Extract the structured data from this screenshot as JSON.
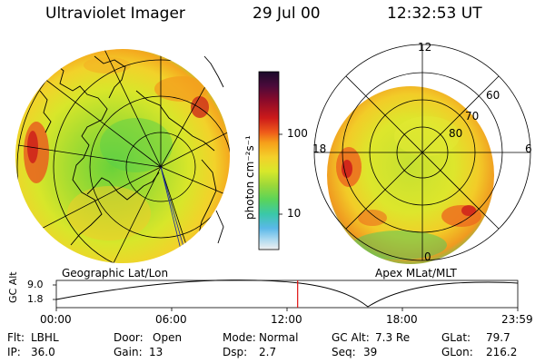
{
  "header": {
    "title": "Ultraviolet Imager",
    "date": "29 Jul 00",
    "time": "12:32:53 UT"
  },
  "colorbar": {
    "unit_label": "photon cm⁻²s⁻¹",
    "tick_100": "100",
    "tick_10": "10",
    "colors": [
      "#1a0a2a",
      "#4b0a3a",
      "#8a0a2a",
      "#cc1a1a",
      "#ee5a1a",
      "#f6a01a",
      "#f4d02a",
      "#d8e82a",
      "#9ad83a",
      "#5ad45a",
      "#3ac8a8",
      "#5ab8e8",
      "#a8d8f0",
      "#f0f0f0"
    ]
  },
  "maps": {
    "geo_label": "Geographic Lat/Lon",
    "apex_label": "Apex MLat/MLT",
    "mlt_12": "12",
    "mlt_18": "18",
    "mlt_6": "6",
    "mlt_0": "0",
    "lat_60": "60",
    "lat_70": "70",
    "lat_80": "80"
  },
  "altitude_panel": {
    "axis_label": "GC Alt",
    "tick_high": "9.0",
    "tick_low": "1.8",
    "hours": [
      "00:00",
      "06:00",
      "12:00",
      "18:00",
      "23:59"
    ],
    "current_fraction": 0.523
  },
  "status": {
    "flt_label": "Flt:",
    "flt_value": "LBHL",
    "ip_label": "IP:",
    "ip_value": "36.0",
    "door_label": "Door:",
    "door_value": "Open",
    "gain_label": "Gain:",
    "gain_value": "13",
    "mode_label": "Mode:",
    "mode_value": "Normal",
    "dsp_label": "Dsp:",
    "dsp_value": "2.7",
    "gcalt_label": "GC Alt:",
    "gcalt_value": "7.3 Re",
    "seq_label": "Seq:",
    "seq_value": "39",
    "glat_label": "GLat:",
    "glat_value": "79.7",
    "glon_label": "GLon:",
    "glon_value": "216.2"
  }
}
